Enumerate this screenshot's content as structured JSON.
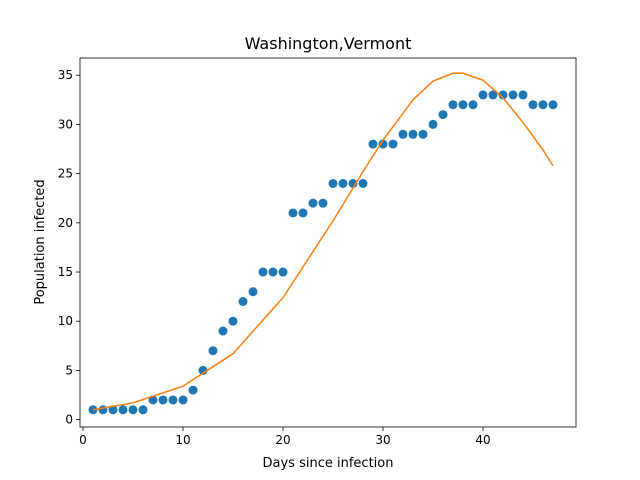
{
  "chart_data": {
    "type": "scatter",
    "title": "Washington,Vermont",
    "xlabel": "Days since infection",
    "ylabel": "Population infected",
    "xlim": [
      -0.3,
      49.3
    ],
    "ylim": [
      -0.75,
      36.75
    ],
    "xticks": [
      0,
      10,
      20,
      30,
      40
    ],
    "yticks": [
      0,
      5,
      10,
      15,
      20,
      25,
      30,
      35
    ],
    "grid": false,
    "series": [
      {
        "kind": "scatter",
        "color": "#1f77b4",
        "x": [
          1,
          2,
          3,
          4,
          5,
          6,
          7,
          8,
          9,
          10,
          11,
          12,
          13,
          14,
          15,
          16,
          17,
          18,
          19,
          20,
          21,
          22,
          23,
          24,
          25,
          26,
          27,
          28,
          29,
          30,
          31,
          32,
          33,
          34,
          35,
          36,
          37,
          38,
          39,
          40,
          41,
          42,
          43,
          44,
          45,
          46,
          47
        ],
        "y": [
          1,
          1,
          1,
          1,
          1,
          1,
          2,
          2,
          2,
          2,
          3,
          5,
          7,
          9,
          10,
          12,
          13,
          15,
          15,
          15,
          21,
          21,
          22,
          22,
          24,
          24,
          24,
          24,
          28,
          28,
          28,
          29,
          29,
          29,
          30,
          31,
          32,
          32,
          32,
          33,
          33,
          33,
          33,
          33,
          32,
          32,
          32
        ]
      },
      {
        "kind": "line",
        "color": "#ff7f0e",
        "x": [
          1,
          5,
          10,
          15,
          20,
          25,
          28,
          30,
          33,
          35,
          37,
          38,
          40,
          42,
          44,
          46,
          47
        ],
        "y": [
          1.0,
          1.7,
          3.4,
          6.7,
          12.4,
          20.2,
          25.2,
          28.4,
          32.5,
          34.4,
          35.2,
          35.2,
          34.5,
          32.7,
          30.2,
          27.4,
          25.8
        ]
      }
    ]
  }
}
